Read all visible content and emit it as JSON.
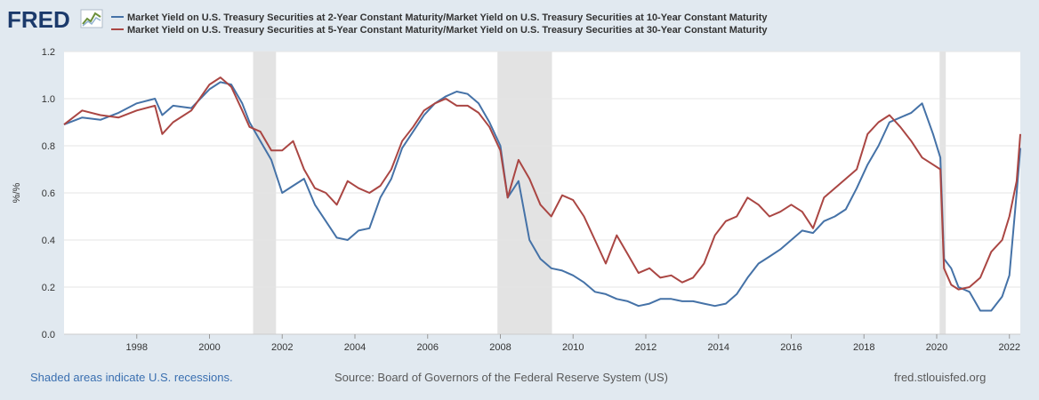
{
  "brand": "FRED",
  "footer": {
    "note": "Shaded areas indicate U.S. recessions.",
    "source": "Source: Board of Governors of the Federal Reserve System (US)",
    "site": "fred.stlouisfed.org"
  },
  "colors": {
    "series1": "#4572a7",
    "series2": "#aa4643",
    "recession": "#e3e3e3",
    "background": "#e1e9f0",
    "plot": "#ffffff"
  },
  "chart_data": {
    "type": "line",
    "ylabel": "%/%",
    "ylim": [
      0,
      1.2
    ],
    "yticks": [
      0.0,
      0.2,
      0.4,
      0.6,
      0.8,
      1.0,
      1.2
    ],
    "ytick_labels": [
      "0.0",
      "0.2",
      "0.4",
      "0.6",
      "0.8",
      "1.0",
      "1.2"
    ],
    "xlim": [
      1996.0,
      2022.3
    ],
    "xticks": [
      1998,
      2000,
      2002,
      2004,
      2006,
      2008,
      2010,
      2012,
      2014,
      2016,
      2018,
      2020,
      2022
    ],
    "xtick_labels": [
      "1998",
      "2000",
      "2002",
      "2004",
      "2006",
      "2008",
      "2010",
      "2012",
      "2014",
      "2016",
      "2018",
      "2020",
      "2022"
    ],
    "grid": true,
    "legend_position": "top-left",
    "recessions": [
      [
        2001.2,
        2001.83
      ],
      [
        2007.92,
        2009.42
      ],
      [
        2020.08,
        2020.25
      ]
    ],
    "series": [
      {
        "name": "Market Yield on U.S. Treasury Securities at 2-Year Constant Maturity/Market Yield on U.S. Treasury Securities at 10-Year Constant Maturity",
        "color": "#4572a7",
        "x": [
          1996.0,
          1996.5,
          1997.0,
          1997.5,
          1998.0,
          1998.5,
          1998.7,
          1999.0,
          1999.5,
          2000.0,
          2000.3,
          2000.6,
          2000.9,
          2001.1,
          2001.4,
          2001.7,
          2002.0,
          2002.3,
          2002.6,
          2002.9,
          2003.2,
          2003.5,
          2003.8,
          2004.1,
          2004.4,
          2004.7,
          2005.0,
          2005.3,
          2005.6,
          2005.9,
          2006.2,
          2006.5,
          2006.8,
          2007.1,
          2007.4,
          2007.7,
          2008.0,
          2008.2,
          2008.5,
          2008.8,
          2009.1,
          2009.4,
          2009.7,
          2010.0,
          2010.3,
          2010.6,
          2010.9,
          2011.2,
          2011.5,
          2011.8,
          2012.1,
          2012.4,
          2012.7,
          2013.0,
          2013.3,
          2013.6,
          2013.9,
          2014.2,
          2014.5,
          2014.8,
          2015.1,
          2015.4,
          2015.7,
          2016.0,
          2016.3,
          2016.6,
          2016.9,
          2017.2,
          2017.5,
          2017.8,
          2018.1,
          2018.4,
          2018.7,
          2019.0,
          2019.3,
          2019.6,
          2019.9,
          2020.1,
          2020.2,
          2020.4,
          2020.6,
          2020.9,
          2021.2,
          2021.5,
          2021.8,
          2022.0,
          2022.2,
          2022.3
        ],
        "values": [
          0.89,
          0.92,
          0.91,
          0.94,
          0.98,
          1.0,
          0.93,
          0.97,
          0.96,
          1.04,
          1.07,
          1.06,
          0.98,
          0.9,
          0.82,
          0.74,
          0.6,
          0.63,
          0.66,
          0.55,
          0.48,
          0.41,
          0.4,
          0.44,
          0.45,
          0.58,
          0.66,
          0.79,
          0.86,
          0.93,
          0.98,
          1.01,
          1.03,
          1.02,
          0.98,
          0.9,
          0.8,
          0.58,
          0.65,
          0.4,
          0.32,
          0.28,
          0.27,
          0.25,
          0.22,
          0.18,
          0.17,
          0.15,
          0.14,
          0.12,
          0.13,
          0.15,
          0.15,
          0.14,
          0.14,
          0.13,
          0.12,
          0.13,
          0.17,
          0.24,
          0.3,
          0.33,
          0.36,
          0.4,
          0.44,
          0.43,
          0.48,
          0.5,
          0.53,
          0.62,
          0.72,
          0.8,
          0.9,
          0.92,
          0.94,
          0.98,
          0.85,
          0.75,
          0.32,
          0.28,
          0.2,
          0.18,
          0.1,
          0.1,
          0.16,
          0.25,
          0.6,
          0.79
        ]
      },
      {
        "name": "Market Yield on U.S. Treasury Securities at 5-Year Constant Maturity/Market Yield on U.S. Treasury Securities at 30-Year Constant Maturity",
        "color": "#aa4643",
        "x": [
          1996.0,
          1996.5,
          1997.0,
          1997.5,
          1998.0,
          1998.5,
          1998.7,
          1999.0,
          1999.5,
          2000.0,
          2000.3,
          2000.6,
          2000.9,
          2001.1,
          2001.4,
          2001.7,
          2002.0,
          2002.3,
          2002.6,
          2002.9,
          2003.2,
          2003.5,
          2003.8,
          2004.1,
          2004.4,
          2004.7,
          2005.0,
          2005.3,
          2005.6,
          2005.9,
          2006.2,
          2006.5,
          2006.8,
          2007.1,
          2007.4,
          2007.7,
          2008.0,
          2008.2,
          2008.5,
          2008.8,
          2009.1,
          2009.4,
          2009.7,
          2010.0,
          2010.3,
          2010.6,
          2010.9,
          2011.2,
          2011.5,
          2011.8,
          2012.1,
          2012.4,
          2012.7,
          2013.0,
          2013.3,
          2013.6,
          2013.9,
          2014.2,
          2014.5,
          2014.8,
          2015.1,
          2015.4,
          2015.7,
          2016.0,
          2016.3,
          2016.6,
          2016.9,
          2017.2,
          2017.5,
          2017.8,
          2018.1,
          2018.4,
          2018.7,
          2019.0,
          2019.3,
          2019.6,
          2019.9,
          2020.1,
          2020.2,
          2020.4,
          2020.6,
          2020.9,
          2021.2,
          2021.5,
          2021.8,
          2022.0,
          2022.2,
          2022.3
        ],
        "values": [
          0.89,
          0.95,
          0.93,
          0.92,
          0.95,
          0.97,
          0.85,
          0.9,
          0.95,
          1.06,
          1.09,
          1.05,
          0.95,
          0.88,
          0.86,
          0.78,
          0.78,
          0.82,
          0.7,
          0.62,
          0.6,
          0.55,
          0.65,
          0.62,
          0.6,
          0.63,
          0.7,
          0.82,
          0.88,
          0.95,
          0.98,
          1.0,
          0.97,
          0.97,
          0.94,
          0.88,
          0.78,
          0.58,
          0.74,
          0.66,
          0.55,
          0.5,
          0.59,
          0.57,
          0.5,
          0.4,
          0.3,
          0.42,
          0.34,
          0.26,
          0.28,
          0.24,
          0.25,
          0.22,
          0.24,
          0.3,
          0.42,
          0.48,
          0.5,
          0.58,
          0.55,
          0.5,
          0.52,
          0.55,
          0.52,
          0.45,
          0.58,
          0.62,
          0.66,
          0.7,
          0.85,
          0.9,
          0.93,
          0.88,
          0.82,
          0.75,
          0.72,
          0.7,
          0.28,
          0.21,
          0.19,
          0.2,
          0.24,
          0.35,
          0.4,
          0.5,
          0.65,
          0.85
        ]
      }
    ]
  }
}
